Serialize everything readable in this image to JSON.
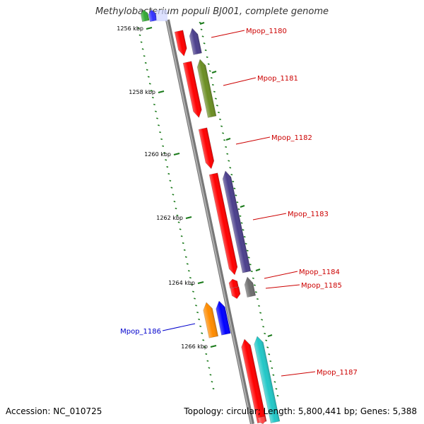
{
  "title": "Methylobacterium populi BJ001, complete genome",
  "footer": {
    "accession": "Accession: NC_010725",
    "summary": "Topology: circular; Length: 5,800,441 bp; Genes: 5,388"
  },
  "colors": {
    "backbone": "#8c8c8c",
    "scale_ticks": "#1a7a1a",
    "forward_label": "#cc0000",
    "reverse_label": "#0000cc",
    "cds": "#ff0000",
    "cog_purple": "#4b3f8c",
    "cog_olive": "#6b8e23",
    "cog_gray": "#6e6e6e",
    "cog_orange": "#ff8c00",
    "cog_blue": "#0000ff",
    "cog_cyan": "#22c7c7"
  },
  "scale_labels": [
    "1256 kbp",
    "1258 kbp",
    "1260 kbp",
    "1262 kbp",
    "1264 kbp",
    "1266 kbp"
  ],
  "genes": [
    {
      "label": "Mpop_1180",
      "strand": "+",
      "cog_color": "#4b3f8c"
    },
    {
      "label": "Mpop_1181",
      "strand": "+",
      "cog_color": "#6b8e23"
    },
    {
      "label": "Mpop_1182",
      "strand": "+",
      "cog_color": ""
    },
    {
      "label": "Mpop_1183",
      "strand": "+",
      "cog_color": "#4b3f8c"
    },
    {
      "label": "Mpop_1184",
      "strand": "+",
      "cog_color": ""
    },
    {
      "label": "Mpop_1185",
      "strand": "+",
      "cog_color": "#6e6e6e"
    },
    {
      "label": "Mpop_1186",
      "strand": "-",
      "cog_color": "#0000ff"
    },
    {
      "label": "Mpop_1187",
      "strand": "+",
      "cog_color": "#22c7c7"
    }
  ]
}
